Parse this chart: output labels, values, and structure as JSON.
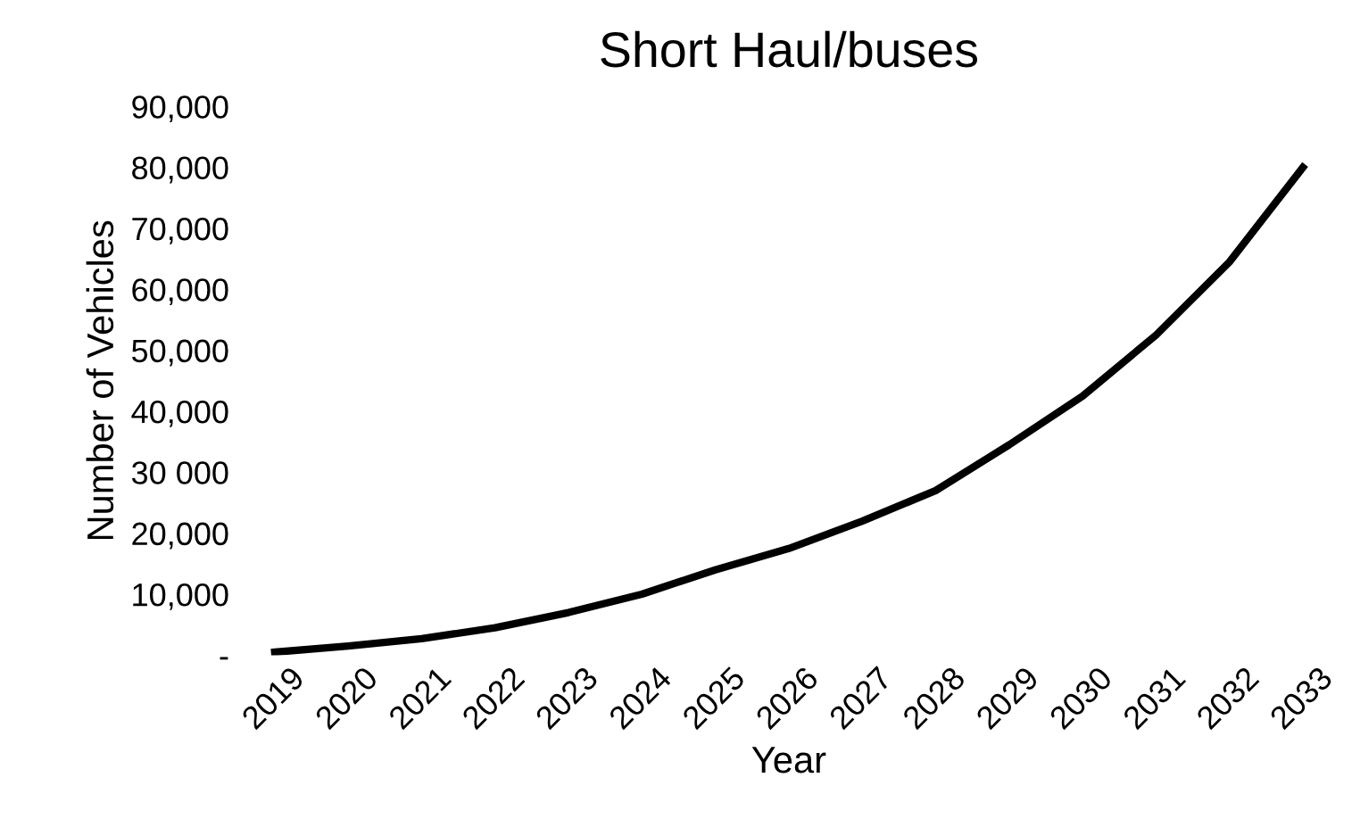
{
  "chart_data": {
    "type": "line",
    "title": "Short Haul/buses",
    "xlabel": "Year",
    "ylabel": "Number of Vehicles",
    "categories": [
      "2019",
      "2020",
      "2021",
      "2022",
      "2023",
      "2024",
      "2025",
      "2026",
      "2027",
      "2028",
      "2029",
      "2030",
      "2031",
      "2032",
      "2033"
    ],
    "series": [
      {
        "color": "#000000",
        "values": [
          500,
          1500,
          2700,
          4500,
          7000,
          10000,
          14000,
          17500,
          22000,
          27000,
          34500,
          42500,
          52500,
          64500,
          80000
        ]
      }
    ],
    "ylim": [
      0,
      90000
    ],
    "yticks": [
      {
        "value": 0,
        "label": "-"
      },
      {
        "value": 10000,
        "label": "10,000"
      },
      {
        "value": 20000,
        "label": "20,000"
      },
      {
        "value": 30000,
        "label": "30 000"
      },
      {
        "value": 40000,
        "label": "40,000"
      },
      {
        "value": 50000,
        "label": "50,000"
      },
      {
        "value": 60000,
        "label": "60,000"
      },
      {
        "value": 70000,
        "label": "70,000"
      },
      {
        "value": 80000,
        "label": "80,000"
      },
      {
        "value": 90000,
        "label": "90,000"
      }
    ],
    "grid": false,
    "legend": false,
    "marker": "none",
    "line_style": "solid"
  }
}
